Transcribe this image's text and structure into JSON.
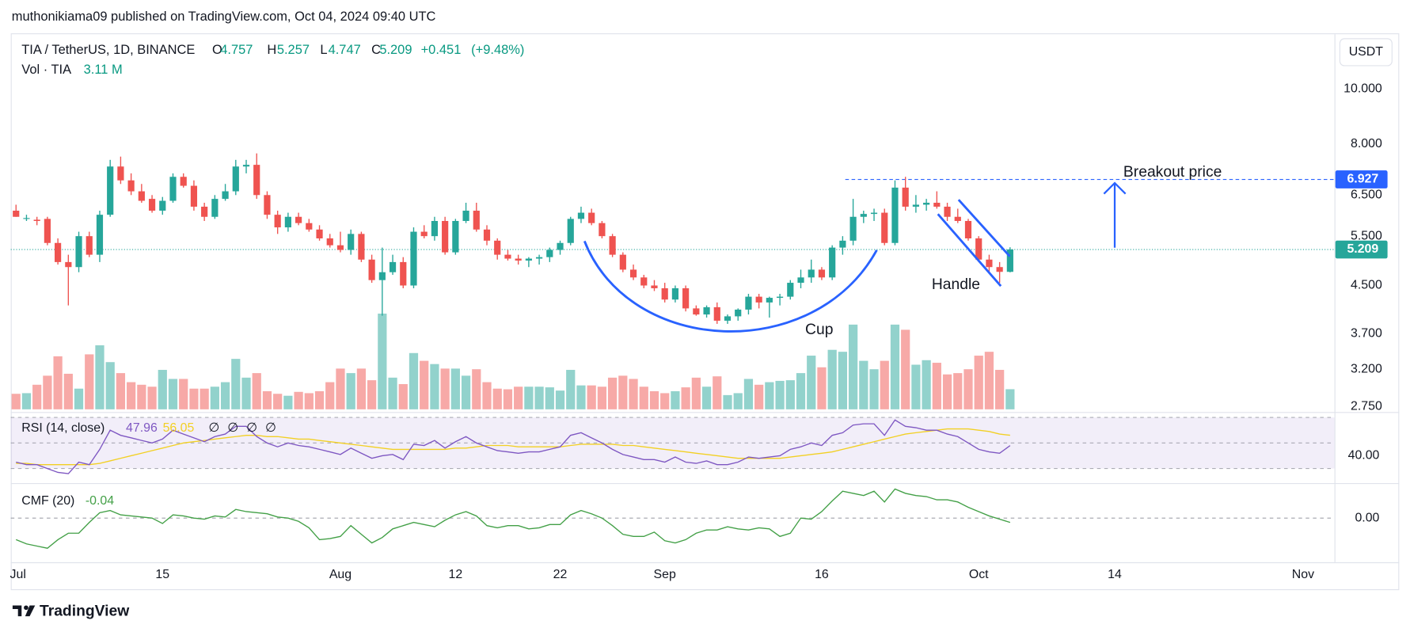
{
  "header": "muthonikiama09 published on TradingView.com, Oct 04, 2024 09:40 UTC",
  "footer": "TradingView",
  "chart_data": {
    "type": "candlestick",
    "title": "TIA / TetherUS, 1D, BINANCE",
    "legend_keys": [
      "O",
      "H",
      "L",
      "C"
    ],
    "change": {
      "value": 0.451,
      "label": "+0.451"
    },
    "change_pct": {
      "value": 9.48,
      "label": "(+9.48%)"
    },
    "currency": "USDT",
    "up_color": "#26a69a",
    "down_color": "#ef5350",
    "log_scale": true,
    "grid": false,
    "xlim": [
      -0.5,
      126
    ],
    "xticks": [
      {
        "value": 0,
        "label": "Jul"
      },
      {
        "value": 14,
        "label": "15"
      },
      {
        "value": 31,
        "label": "Aug"
      },
      {
        "value": 42,
        "label": "12"
      },
      {
        "value": 52,
        "label": "22"
      },
      {
        "value": 62,
        "label": "Sep"
      },
      {
        "value": 77,
        "label": "16"
      },
      {
        "value": 92,
        "label": "Oct"
      },
      {
        "value": 105,
        "label": "14"
      },
      {
        "value": 123,
        "label": "Nov"
      }
    ],
    "ylim": [
      2.72,
      12.5
    ],
    "yticks": [
      {
        "value": 10,
        "label": "10.000"
      },
      {
        "value": 8,
        "label": "8.000"
      },
      {
        "value": 6.5,
        "label": "6.500"
      },
      {
        "value": 5.5,
        "label": "5.500"
      },
      {
        "value": 4.5,
        "label": "4.500"
      },
      {
        "value": 3.7,
        "label": "3.700"
      },
      {
        "value": 3.2,
        "label": "3.200"
      },
      {
        "value": 2.75,
        "label": "2.750"
      }
    ],
    "ohlc": [
      [
        6.1,
        6.25,
        5.95,
        5.95
      ],
      [
        5.9,
        6.0,
        5.85,
        5.92
      ],
      [
        5.88,
        5.95,
        5.75,
        5.85
      ],
      [
        5.9,
        5.95,
        5.3,
        5.35
      ],
      [
        5.35,
        5.45,
        4.9,
        4.95
      ],
      [
        4.95,
        5.1,
        4.15,
        4.85
      ],
      [
        4.85,
        5.6,
        4.75,
        5.5
      ],
      [
        5.5,
        5.6,
        5.05,
        5.1
      ],
      [
        5.1,
        6.1,
        4.95,
        6.0
      ],
      [
        6.0,
        7.5,
        5.95,
        7.3
      ],
      [
        7.3,
        7.6,
        6.8,
        6.9
      ],
      [
        6.9,
        7.1,
        6.5,
        6.6
      ],
      [
        6.6,
        6.8,
        6.3,
        6.35
      ],
      [
        6.4,
        6.5,
        6.05,
        6.1
      ],
      [
        6.1,
        6.45,
        6.0,
        6.35
      ],
      [
        6.35,
        7.1,
        6.3,
        7.0
      ],
      [
        7.0,
        7.1,
        6.7,
        6.75
      ],
      [
        6.75,
        6.9,
        6.1,
        6.2
      ],
      [
        6.2,
        6.3,
        5.85,
        5.95
      ],
      [
        5.95,
        6.5,
        5.9,
        6.4
      ],
      [
        6.4,
        6.8,
        6.35,
        6.6
      ],
      [
        6.6,
        7.5,
        6.5,
        7.3
      ],
      [
        7.3,
        7.5,
        7.1,
        7.35
      ],
      [
        7.35,
        7.7,
        6.4,
        6.5
      ],
      [
        6.5,
        6.6,
        5.9,
        6.0
      ],
      [
        6.0,
        6.1,
        5.55,
        5.7
      ],
      [
        5.7,
        6.05,
        5.6,
        5.95
      ],
      [
        5.95,
        6.05,
        5.75,
        5.8
      ],
      [
        5.8,
        5.9,
        5.6,
        5.65
      ],
      [
        5.65,
        5.75,
        5.4,
        5.45
      ],
      [
        5.45,
        5.55,
        5.25,
        5.3
      ],
      [
        5.3,
        5.6,
        5.15,
        5.2
      ],
      [
        5.2,
        5.65,
        5.1,
        5.55
      ],
      [
        5.55,
        5.6,
        4.95,
        5.0
      ],
      [
        5.0,
        5.1,
        4.55,
        4.6
      ],
      [
        4.6,
        5.25,
        3.98,
        4.75
      ],
      [
        4.75,
        5.1,
        4.7,
        4.95
      ],
      [
        4.95,
        5.05,
        4.45,
        4.5
      ],
      [
        4.5,
        5.7,
        4.45,
        5.6
      ],
      [
        5.6,
        5.75,
        5.45,
        5.5
      ],
      [
        5.5,
        5.95,
        5.4,
        5.85
      ],
      [
        5.85,
        5.95,
        5.1,
        5.15
      ],
      [
        5.15,
        5.9,
        5.1,
        5.85
      ],
      [
        5.85,
        6.3,
        5.8,
        6.1
      ],
      [
        6.1,
        6.3,
        5.6,
        5.65
      ],
      [
        5.65,
        5.75,
        5.3,
        5.4
      ],
      [
        5.4,
        5.45,
        5.0,
        5.1
      ],
      [
        5.1,
        5.2,
        4.98,
        5.02
      ],
      [
        5.02,
        5.1,
        4.9,
        4.98
      ],
      [
        4.98,
        5.05,
        4.85,
        5.02
      ],
      [
        5.02,
        5.1,
        4.9,
        5.05
      ],
      [
        5.05,
        5.25,
        4.95,
        5.2
      ],
      [
        5.2,
        5.4,
        5.1,
        5.35
      ],
      [
        5.35,
        5.95,
        5.3,
        5.9
      ],
      [
        5.9,
        6.2,
        5.8,
        6.05
      ],
      [
        6.05,
        6.15,
        5.75,
        5.8
      ],
      [
        5.8,
        5.85,
        5.45,
        5.5
      ],
      [
        5.5,
        5.55,
        5.05,
        5.1
      ],
      [
        5.1,
        5.15,
        4.75,
        4.8
      ],
      [
        4.8,
        4.9,
        4.6,
        4.65
      ],
      [
        4.65,
        4.7,
        4.45,
        4.5
      ],
      [
        4.5,
        4.6,
        4.4,
        4.45
      ],
      [
        4.45,
        4.55,
        4.2,
        4.25
      ],
      [
        4.25,
        4.5,
        4.2,
        4.45
      ],
      [
        4.45,
        4.5,
        4.05,
        4.1
      ],
      [
        4.1,
        4.15,
        3.98,
        4.0
      ],
      [
        4.0,
        4.15,
        3.95,
        4.12
      ],
      [
        4.12,
        4.2,
        3.85,
        3.9
      ],
      [
        3.9,
        4.0,
        3.85,
        3.97
      ],
      [
        3.97,
        4.1,
        3.9,
        4.08
      ],
      [
        4.08,
        4.35,
        4.0,
        4.3
      ],
      [
        4.3,
        4.35,
        4.1,
        4.2
      ],
      [
        4.2,
        4.3,
        3.95,
        4.28
      ],
      [
        4.28,
        4.35,
        4.15,
        4.3
      ],
      [
        4.3,
        4.6,
        4.25,
        4.55
      ],
      [
        4.55,
        4.8,
        4.45,
        4.65
      ],
      [
        4.65,
        5.0,
        4.55,
        4.8
      ],
      [
        4.8,
        4.85,
        4.6,
        4.65
      ],
      [
        4.65,
        5.3,
        4.6,
        5.25
      ],
      [
        5.25,
        5.5,
        5.1,
        5.4
      ],
      [
        5.4,
        6.4,
        5.3,
        5.95
      ],
      [
        5.95,
        6.1,
        5.8,
        6.02
      ],
      [
        6.02,
        6.15,
        5.85,
        6.05
      ],
      [
        6.05,
        6.15,
        5.3,
        5.35
      ],
      [
        5.35,
        6.9,
        5.3,
        6.7
      ],
      [
        6.7,
        7.0,
        6.1,
        6.2
      ],
      [
        6.2,
        6.5,
        6.05,
        6.25
      ],
      [
        6.25,
        6.4,
        6.1,
        6.3
      ],
      [
        6.3,
        6.6,
        6.15,
        6.2
      ],
      [
        6.2,
        6.3,
        5.85,
        5.95
      ],
      [
        5.95,
        6.15,
        5.8,
        5.85
      ],
      [
        5.85,
        5.9,
        5.4,
        5.45
      ],
      [
        5.45,
        5.5,
        4.95,
        5.0
      ],
      [
        5.0,
        5.1,
        4.75,
        4.85
      ],
      [
        4.85,
        4.95,
        4.55,
        4.757
      ],
      [
        4.757,
        5.257,
        4.747,
        5.209
      ]
    ],
    "volume": {
      "name": "Vol · TIA",
      "value_label": "3.11 M",
      "ylim": [
        0,
        58
      ],
      "values": [
        2.4,
        2.5,
        3.8,
        5.2,
        8.2,
        5.5,
        3.2,
        8.5,
        9.9,
        7.3,
        5.6,
        4.2,
        3.8,
        3.5,
        6.1,
        4.7,
        4.7,
        3.2,
        3.2,
        3.5,
        4.2,
        7.8,
        4.9,
        5.6,
        2.8,
        2.4,
        2.1,
        2.7,
        2.5,
        2.8,
        4.2,
        6.3,
        5.6,
        6.3,
        4.5,
        14.8,
        4.9,
        3.9,
        8.7,
        7.5,
        7.0,
        6.3,
        6.3,
        5.2,
        6.2,
        4.2,
        3.2,
        3.1,
        3.5,
        3.5,
        3.5,
        3.4,
        2.9,
        6.1,
        3.7,
        3.7,
        3.5,
        4.9,
        5.2,
        4.7,
        3.5,
        2.8,
        2.5,
        2.8,
        3.4,
        4.9,
        3.5,
        5.1,
        2.2,
        2.5,
        4.7,
        3.8,
        4.2,
        4.4,
        4.5,
        5.6,
        8.3,
        6.5,
        9.2,
        8.9,
        13.1,
        7.5,
        6.2,
        7.5,
        13.1,
        12.3,
        6.9,
        7.6,
        7.2,
        5.4,
        5.6,
        6.2,
        8.3,
        8.9,
        6.1,
        3.11
      ]
    },
    "rsi": {
      "name": "RSI (14, close)",
      "color": "#7e57c2",
      "ma_color": "#f2d024",
      "placeholders": [
        "∅",
        "∅",
        "∅",
        "∅"
      ],
      "ylim": [
        20,
        71.4
      ],
      "yticks": [
        {
          "value": 40,
          "label": "40.00"
        }
      ],
      "bands": [
        30,
        50,
        70
      ],
      "values": [
        35,
        33,
        33,
        30,
        27,
        26,
        35,
        33,
        45,
        60,
        56,
        54,
        52,
        50,
        53,
        60,
        57,
        54,
        51,
        55,
        57,
        63,
        63,
        55,
        50,
        47,
        50,
        48,
        47,
        45,
        43,
        41,
        46,
        42,
        38,
        40,
        41,
        37,
        49,
        48,
        52,
        46,
        51,
        55,
        50,
        47,
        44,
        43,
        42,
        43,
        43,
        45,
        47,
        56,
        58,
        54,
        50,
        45,
        41,
        39,
        37,
        37,
        35,
        39,
        35,
        34,
        36,
        33,
        33,
        35,
        39,
        38,
        39,
        40,
        45,
        47,
        50,
        48,
        56,
        58,
        64,
        65,
        65,
        56,
        68,
        63,
        62,
        60,
        60,
        57,
        55,
        50,
        45,
        43,
        42,
        47.96
      ],
      "ma_values": [
        34,
        34,
        33,
        33,
        33,
        33,
        33,
        33,
        34,
        36,
        38,
        40,
        42,
        44,
        46,
        48,
        50,
        51,
        52,
        53,
        54,
        55,
        56,
        56,
        55,
        55,
        54,
        53,
        53,
        52,
        51,
        50,
        49,
        48,
        47,
        46,
        45,
        45,
        45,
        45,
        45,
        45,
        46,
        46,
        47,
        48,
        48,
        48,
        47,
        47,
        47,
        47,
        47,
        48,
        49,
        49,
        49,
        49,
        48,
        48,
        47,
        46,
        45,
        44,
        43,
        42,
        41,
        40,
        39,
        38,
        38,
        38,
        38,
        38,
        39,
        40,
        41,
        42,
        43,
        45,
        47,
        49,
        51,
        53,
        55,
        57,
        58,
        59,
        60,
        61,
        61,
        61,
        60,
        59,
        57,
        56.05
      ]
    },
    "cmf": {
      "name": "CMF (20)",
      "color": "#43a047",
      "ylim": [
        -0.41,
        0.3
      ],
      "yticks": [
        {
          "value": 0,
          "label": "0.00"
        }
      ],
      "values": [
        -0.2,
        -0.24,
        -0.26,
        -0.28,
        -0.2,
        -0.14,
        -0.14,
        -0.04,
        0.05,
        0.07,
        0.03,
        0.02,
        0.01,
        0,
        -0.05,
        0.03,
        0.02,
        0,
        -0.01,
        0.02,
        0.01,
        0.08,
        0.06,
        0.05,
        0.04,
        0.01,
        0,
        -0.03,
        -0.09,
        -0.2,
        -0.19,
        -0.17,
        -0.07,
        -0.15,
        -0.23,
        -0.18,
        -0.1,
        -0.07,
        -0.04,
        -0.06,
        -0.08,
        -0.02,
        0.03,
        0.06,
        0.02,
        -0.07,
        -0.09,
        -0.07,
        -0.07,
        -0.1,
        -0.09,
        -0.06,
        -0.06,
        0.03,
        0.07,
        0.04,
        0,
        -0.07,
        -0.15,
        -0.17,
        -0.17,
        -0.13,
        -0.21,
        -0.23,
        -0.2,
        -0.14,
        -0.11,
        -0.11,
        -0.08,
        -0.1,
        -0.11,
        -0.09,
        -0.1,
        -0.17,
        -0.14,
        0,
        -0.01,
        0.06,
        0.16,
        0.25,
        0.23,
        0.21,
        0.25,
        0.15,
        0.27,
        0.23,
        0.21,
        0.2,
        0.17,
        0.17,
        0.15,
        0.1,
        0.06,
        0.02,
        -0.01,
        -0.04
      ]
    },
    "annotations": {
      "breakout": {
        "value": 6.927,
        "label": "6.927",
        "text": "Breakout price",
        "color": "#2962ff"
      },
      "cup": "Cup",
      "handle": "Handle"
    }
  }
}
